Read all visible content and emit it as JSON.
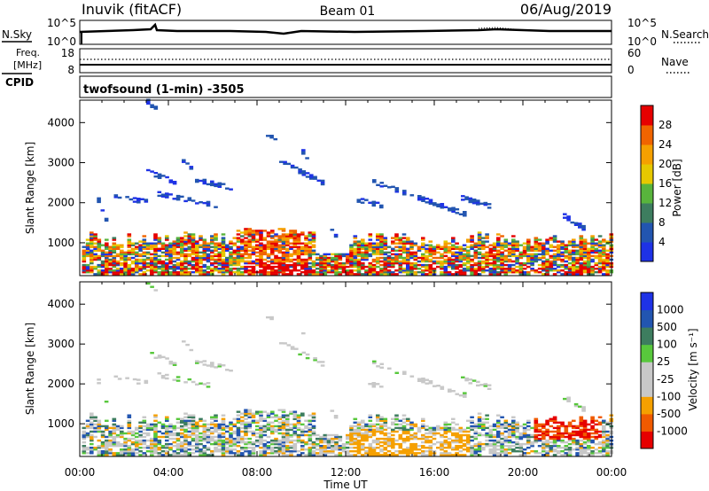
{
  "header": {
    "station": "Inuvik (fitACF)",
    "beam": "Beam 01",
    "date": "06/Aug/2019"
  },
  "noise_panel": {
    "left_label": "N.Sky",
    "right_label": "N.Search",
    "left_ticks": [
      "10^5",
      "10^0"
    ],
    "right_ticks": [
      "10^5",
      "10^0"
    ]
  },
  "freq_panel": {
    "left_label_top": "Freq.",
    "left_label_bottom": "[MHz]",
    "right_label": "Nave",
    "left_ticks": [
      "18",
      "8"
    ],
    "right_ticks": [
      "60",
      "0"
    ]
  },
  "cpid": {
    "label": "CPID",
    "program": "twofsound (1-min) -3505"
  },
  "colors": {
    "power_scale": [
      "#1e32e6",
      "#2255b0",
      "#3d7d5f",
      "#58b43c",
      "#e6c800",
      "#f5a000",
      "#f06400",
      "#e60000"
    ],
    "velocity_scale": [
      "#e60000",
      "#f05a00",
      "#f5a000",
      "#c8c8c8",
      "#c8c8c8",
      "#58c83c",
      "#3d7d5f",
      "#2255b0",
      "#1e32e6"
    ]
  },
  "chart_data": [
    {
      "type": "heatmap",
      "title": "Power",
      "ylabel": "Slant Range [km]",
      "colorbar_label": "Power [dB]",
      "colorbar_ticks": [
        "4",
        "8",
        "12",
        "16",
        "20",
        "24",
        "28"
      ],
      "ylim": [
        180,
        4560
      ],
      "yticks": [
        1000,
        2000,
        3000,
        4000
      ],
      "xlim": [
        0,
        24
      ],
      "xtick_labels": [
        "00:00",
        "04:00",
        "08:00",
        "12:00",
        "16:00",
        "20:00",
        "00:00"
      ]
    },
    {
      "type": "heatmap",
      "title": "Velocity",
      "ylabel": "Slant Range [km]",
      "colorbar_label": "Velocity [m s⁻¹]",
      "colorbar_ticks": [
        "-1000",
        "-500",
        "-100",
        "-25",
        "25",
        "100",
        "500",
        "1000"
      ],
      "ylim": [
        180,
        4560
      ],
      "yticks": [
        1000,
        2000,
        3000,
        4000
      ],
      "xlim": [
        0,
        24
      ],
      "xlabel": "Time UT",
      "xtick_labels": [
        "00:00",
        "04:00",
        "08:00",
        "12:00",
        "16:00",
        "20:00",
        "00:00"
      ]
    }
  ]
}
